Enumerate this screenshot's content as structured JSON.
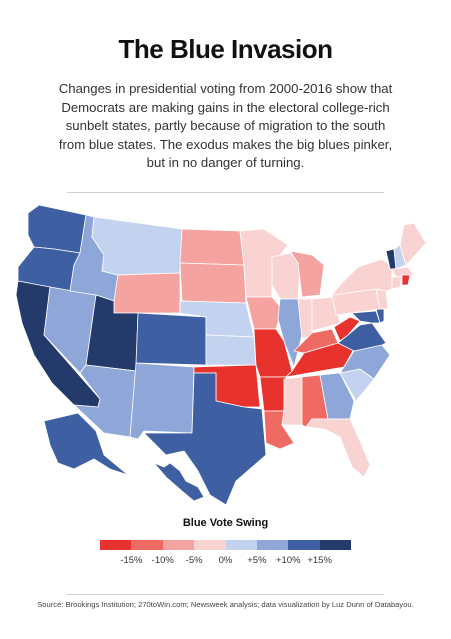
{
  "header": {
    "title": "The Blue Invasion",
    "subtitle": "Changes in presidential voting from 2000-2016 show that Democrats are making gains in the electoral college-rich sunbelt states, partly because of migration to the south from blue states. The exodus makes the big blues pinker, but in no danger of turning."
  },
  "legend": {
    "title": "Blue Vote Swing",
    "labels": [
      "-15%",
      "-10%",
      "-5%",
      "0%",
      "+5%",
      "+10%",
      "+15%"
    ],
    "colors": [
      "#e8322e",
      "#ee6a62",
      "#f4a3a0",
      "#f9d3d2",
      "#c3d2ee",
      "#8ea7d8",
      "#3f5fa3",
      "#233a6b"
    ]
  },
  "map": {
    "states": [
      {
        "id": "WA",
        "color": "#3f5fa3"
      },
      {
        "id": "OR",
        "color": "#3f5fa3"
      },
      {
        "id": "CA",
        "color": "#233a6b"
      },
      {
        "id": "NV",
        "color": "#8ea7d8"
      },
      {
        "id": "ID",
        "color": "#8ea7d8"
      },
      {
        "id": "MT",
        "color": "#c3d2ee"
      },
      {
        "id": "WY",
        "color": "#f4a3a0"
      },
      {
        "id": "UT",
        "color": "#233a6b"
      },
      {
        "id": "AZ",
        "color": "#8ea7d8"
      },
      {
        "id": "CO",
        "color": "#3f5fa3"
      },
      {
        "id": "NM",
        "color": "#8ea7d8"
      },
      {
        "id": "ND",
        "color": "#f4a3a0"
      },
      {
        "id": "SD",
        "color": "#f4a3a0"
      },
      {
        "id": "NE",
        "color": "#c3d2ee"
      },
      {
        "id": "KS",
        "color": "#c3d2ee"
      },
      {
        "id": "OK",
        "color": "#e8322e"
      },
      {
        "id": "TX",
        "color": "#3f5fa3"
      },
      {
        "id": "MN",
        "color": "#f9d3d2"
      },
      {
        "id": "IA",
        "color": "#f4a3a0"
      },
      {
        "id": "MO",
        "color": "#e8322e"
      },
      {
        "id": "AR",
        "color": "#e8322e"
      },
      {
        "id": "LA",
        "color": "#ee6a62"
      },
      {
        "id": "WI",
        "color": "#f9d3d2"
      },
      {
        "id": "IL",
        "color": "#8ea7d8"
      },
      {
        "id": "MI",
        "color": "#f4a3a0"
      },
      {
        "id": "IN",
        "color": "#f9d3d2"
      },
      {
        "id": "OH",
        "color": "#f9d3d2"
      },
      {
        "id": "KY",
        "color": "#ee6a62"
      },
      {
        "id": "TN",
        "color": "#e8322e"
      },
      {
        "id": "MS",
        "color": "#f9d3d2"
      },
      {
        "id": "AL",
        "color": "#ee6a62"
      },
      {
        "id": "GA",
        "color": "#8ea7d8"
      },
      {
        "id": "FL",
        "color": "#f9d3d2"
      },
      {
        "id": "SC",
        "color": "#c3d2ee"
      },
      {
        "id": "NC",
        "color": "#8ea7d8"
      },
      {
        "id": "VA",
        "color": "#3f5fa3"
      },
      {
        "id": "WV",
        "color": "#e8322e"
      },
      {
        "id": "PA",
        "color": "#f9d3d2"
      },
      {
        "id": "NY",
        "color": "#f9d3d2"
      },
      {
        "id": "ME",
        "color": "#f9d3d2"
      },
      {
        "id": "VT",
        "color": "#233a6b"
      },
      {
        "id": "NH",
        "color": "#c3d2ee"
      },
      {
        "id": "MA",
        "color": "#f9d3d2"
      },
      {
        "id": "CT",
        "color": "#f9d3d2"
      },
      {
        "id": "RI",
        "color": "#e8322e"
      },
      {
        "id": "NJ",
        "color": "#f9d3d2"
      },
      {
        "id": "DE",
        "color": "#3f5fa3"
      },
      {
        "id": "MD",
        "color": "#3f5fa3"
      },
      {
        "id": "AK",
        "color": "#3f5fa3"
      },
      {
        "id": "HI",
        "color": "#3f5fa3"
      }
    ]
  },
  "footer": {
    "source": "Source: Brookings Institution; 270toWin.com; Newsweek analysis; data visualization by Luz Dunn of Databayou."
  }
}
